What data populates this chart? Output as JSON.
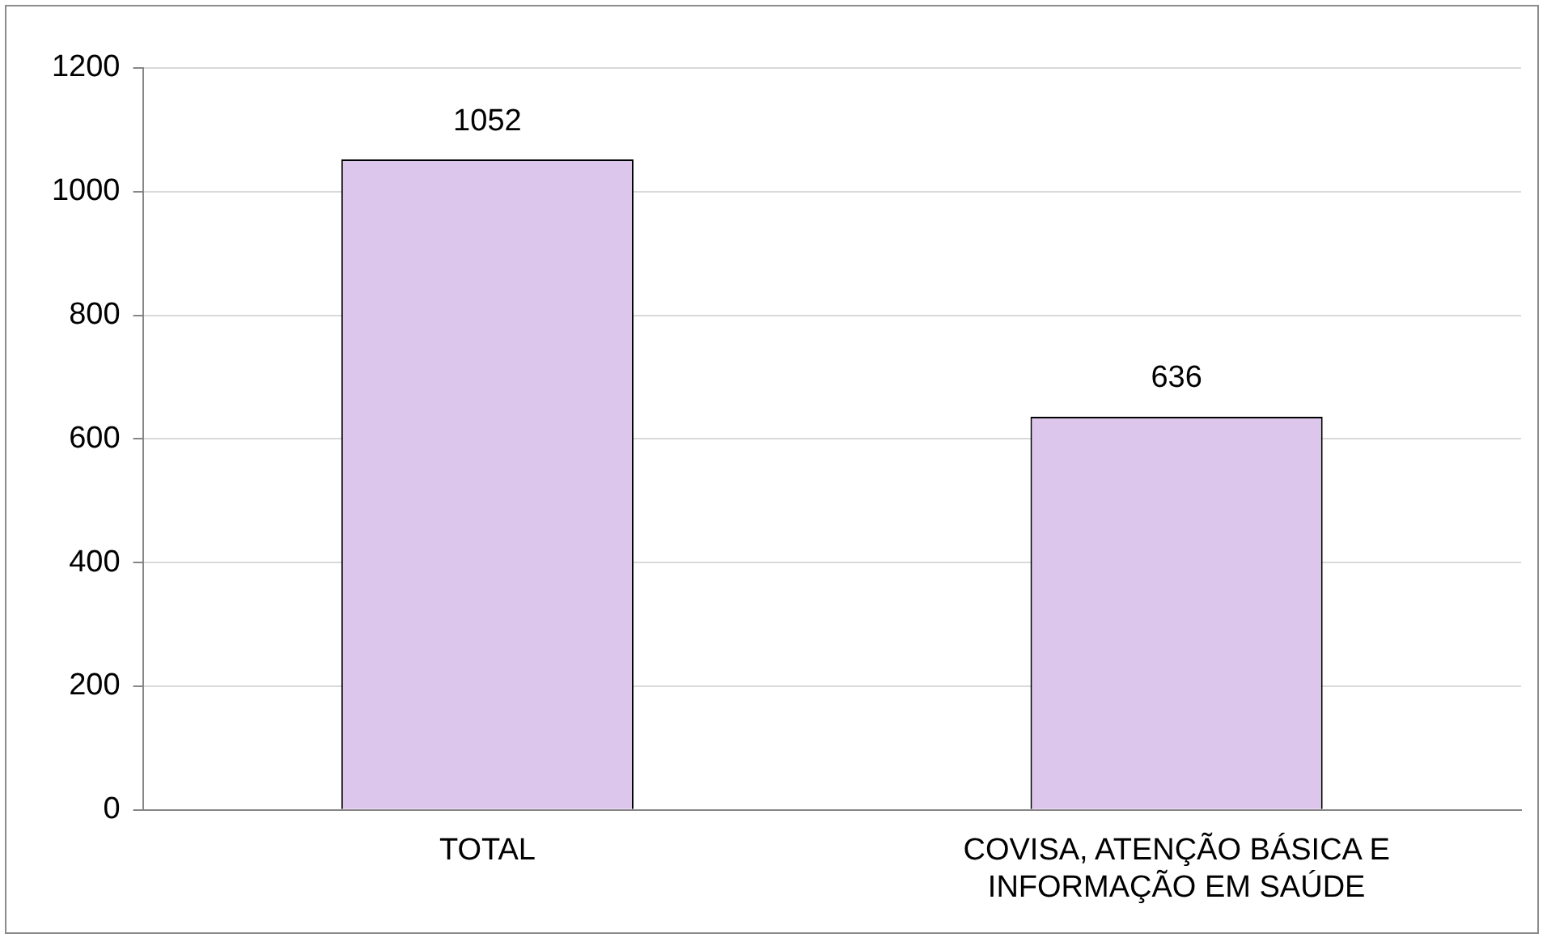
{
  "chart_data": {
    "type": "bar",
    "categories": [
      "TOTAL",
      "COVISA, ATENÇÃO BÁSICA E INFORMAÇÃO EM SAÚDE"
    ],
    "values": [
      1052,
      636
    ],
    "color": "#dcc6ec",
    "ylim": [
      0,
      1200
    ],
    "yticks": [
      0,
      200,
      400,
      600,
      800,
      1000,
      1200
    ],
    "grid": "y",
    "data_labels": true,
    "legend": false
  }
}
